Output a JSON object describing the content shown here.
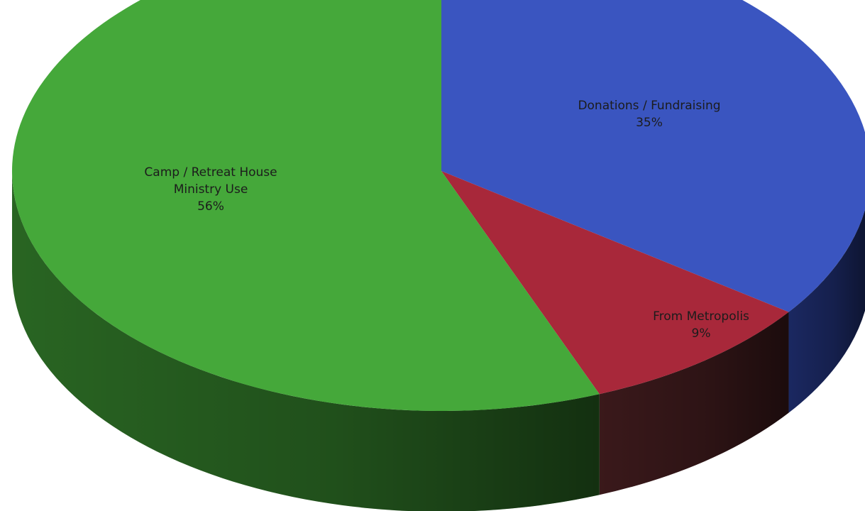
{
  "chart_data": {
    "type": "pie",
    "style": "3d",
    "title": "",
    "slices": [
      {
        "label_lines": [
          "Donations / Fundraising"
        ],
        "value": 35,
        "percent_label": "35%",
        "color": "#3a55c0",
        "side_color": "#1c2a66"
      },
      {
        "label_lines": [
          "From Metropolis"
        ],
        "value": 9,
        "percent_label": "9%",
        "color": "#a8283a",
        "side_color": "#3d1a1c"
      },
      {
        "label_lines": [
          "Camp / Retreat House",
          "Ministry Use"
        ],
        "value": 56,
        "percent_label": "56%",
        "color": "#45a83a",
        "side_color": "#2b6a24"
      }
    ],
    "label_color": "#1c1c1c",
    "legend": "none"
  }
}
